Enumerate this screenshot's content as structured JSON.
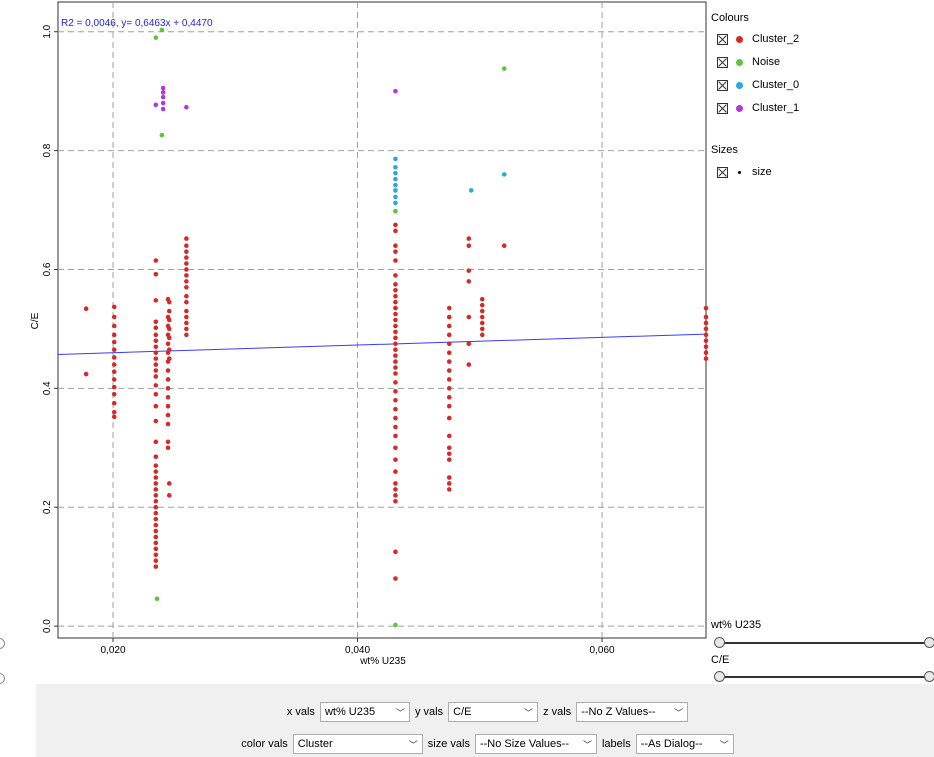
{
  "chart_data": {
    "type": "scatter",
    "title": "",
    "xlabel": "wt% U235",
    "ylabel": "C/E",
    "xlim": [
      0.0155,
      0.0685
    ],
    "ylim": [
      -0.02,
      1.05
    ],
    "xticks": [
      0.02,
      0.04,
      0.06
    ],
    "xtick_labels": [
      "0,020",
      "0,040",
      "0,060"
    ],
    "yticks": [
      0.0,
      0.2,
      0.4,
      0.6,
      0.8,
      1.0
    ],
    "ytick_labels": [
      "0.0",
      "0.2",
      "0.4",
      "0.6",
      "0.8",
      "1.0"
    ],
    "grid": true,
    "regression": {
      "label": "R2 = 0,0046, y= 0,6463x + 0,4470",
      "slope": 0.6463,
      "intercept": 0.447,
      "color": "#3a3af5"
    },
    "legend_position": "right",
    "series": [
      {
        "name": "Cluster_2",
        "color": "#d42a2a",
        "groups": [
          {
            "x": 0.0178,
            "y": [
              0.534,
              0.424
            ]
          },
          {
            "x": 0.0201,
            "y": [
              0.537,
              0.52,
              0.505,
              0.49,
              0.478,
              0.465,
              0.452,
              0.44,
              0.428,
              0.415,
              0.402,
              0.39,
              0.375,
              0.36,
              0.352
            ]
          },
          {
            "x": 0.0235,
            "y": [
              0.615,
              0.592,
              0.548,
              0.512,
              0.502,
              0.49,
              0.48,
              0.47,
              0.46,
              0.45,
              0.44,
              0.43,
              0.42,
              0.405,
              0.39,
              0.37,
              0.345,
              0.31,
              0.285,
              0.27,
              0.26,
              0.25,
              0.24,
              0.23,
              0.22,
              0.21,
              0.2,
              0.19,
              0.18,
              0.17,
              0.16,
              0.15,
              0.14,
              0.13,
              0.12,
              0.11,
              0.1
            ]
          },
          {
            "x": 0.0245,
            "y": [
              0.55,
              0.52,
              0.505,
              0.49,
              0.475,
              0.46,
              0.445,
              0.43,
              0.415,
              0.4,
              0.385,
              0.37,
              0.355,
              0.34,
              0.31,
              0.3
            ]
          },
          {
            "x": 0.0246,
            "y": [
              0.545,
              0.53,
              0.515,
              0.5,
              0.485,
              0.465,
              0.45,
              0.24,
              0.22
            ]
          },
          {
            "x": 0.026,
            "y": [
              0.652,
              0.64,
              0.63,
              0.62,
              0.61,
              0.6,
              0.59,
              0.58,
              0.57,
              0.555,
              0.545,
              0.53,
              0.52,
              0.51,
              0.5,
              0.49
            ]
          },
          {
            "x": 0.0431,
            "y": [
              0.675,
              0.665,
              0.64,
              0.63,
              0.615,
              0.59,
              0.575,
              0.565,
              0.555,
              0.545,
              0.535,
              0.525,
              0.515,
              0.505,
              0.495,
              0.485,
              0.475,
              0.465,
              0.455,
              0.445,
              0.435,
              0.425,
              0.41,
              0.395,
              0.38,
              0.365,
              0.35,
              0.335,
              0.32,
              0.3,
              0.28,
              0.26,
              0.24,
              0.23,
              0.22,
              0.21,
              0.125,
              0.08
            ]
          },
          {
            "x": 0.0475,
            "y": [
              0.535,
              0.52,
              0.505,
              0.49,
              0.475,
              0.46,
              0.445,
              0.43,
              0.415,
              0.4,
              0.385,
              0.37,
              0.35,
              0.32,
              0.3,
              0.29,
              0.28,
              0.25,
              0.24,
              0.23
            ]
          },
          {
            "x": 0.0491,
            "y": [
              0.652,
              0.64,
              0.598,
              0.58,
              0.52,
              0.475,
              0.44
            ]
          },
          {
            "x": 0.0502,
            "y": [
              0.55,
              0.54,
              0.53,
              0.52,
              0.51,
              0.5,
              0.49
            ]
          },
          {
            "x": 0.052,
            "y": [
              0.64
            ]
          },
          {
            "x": 0.0685,
            "y": [
              0.535,
              0.52,
              0.51,
              0.5,
              0.49,
              0.48,
              0.47,
              0.46,
              0.45
            ]
          }
        ]
      },
      {
        "name": "Noise",
        "color": "#5cc53a",
        "groups": [
          {
            "x": 0.0235,
            "y": [
              0.99
            ]
          },
          {
            "x": 0.024,
            "y": [
              1.003,
              0.826
            ]
          },
          {
            "x": 0.0236,
            "y": [
              0.046
            ]
          },
          {
            "x": 0.0431,
            "y": [
              0.698,
              0.002
            ]
          },
          {
            "x": 0.052,
            "y": [
              0.938
            ]
          }
        ]
      },
      {
        "name": "Cluster_0",
        "color": "#2aa9d4",
        "groups": [
          {
            "x": 0.0431,
            "y": [
              0.786,
              0.772,
              0.762,
              0.752,
              0.742,
              0.733,
              0.722,
              0.712
            ]
          },
          {
            "x": 0.0493,
            "y": [
              0.733
            ]
          },
          {
            "x": 0.052,
            "y": [
              0.76
            ]
          }
        ]
      },
      {
        "name": "Cluster_1",
        "color": "#b03ad4",
        "groups": [
          {
            "x": 0.0235,
            "y": [
              0.877
            ]
          },
          {
            "x": 0.0241,
            "y": [
              0.905,
              0.898,
              0.89,
              0.88,
              0.87
            ]
          },
          {
            "x": 0.026,
            "y": [
              0.873
            ]
          },
          {
            "x": 0.0431,
            "y": [
              0.9
            ]
          }
        ]
      }
    ]
  },
  "legend": {
    "colours_title": "Colours",
    "items": [
      {
        "name": "Cluster_2",
        "color": "#d42a2a"
      },
      {
        "name": "Noise",
        "color": "#5cc53a"
      },
      {
        "name": "Cluster_0",
        "color": "#2aa9d4"
      },
      {
        "name": "Cluster_1",
        "color": "#b03ad4"
      }
    ],
    "sizes_title": "Sizes",
    "size_item": "size"
  },
  "sliders": [
    {
      "label": "wt% U235"
    },
    {
      "label": "C/E"
    }
  ],
  "controls": {
    "x_label": "x vals",
    "x_value": "wt% U235",
    "y_label": "y vals",
    "y_value": "C/E",
    "z_label": "z vals",
    "z_value": "--No Z Values--",
    "color_label": "color vals",
    "color_value": "Cluster",
    "size_label": "size vals",
    "size_value": "--No Size Values--",
    "labels_label": "labels",
    "labels_value": "--As Dialog--"
  }
}
